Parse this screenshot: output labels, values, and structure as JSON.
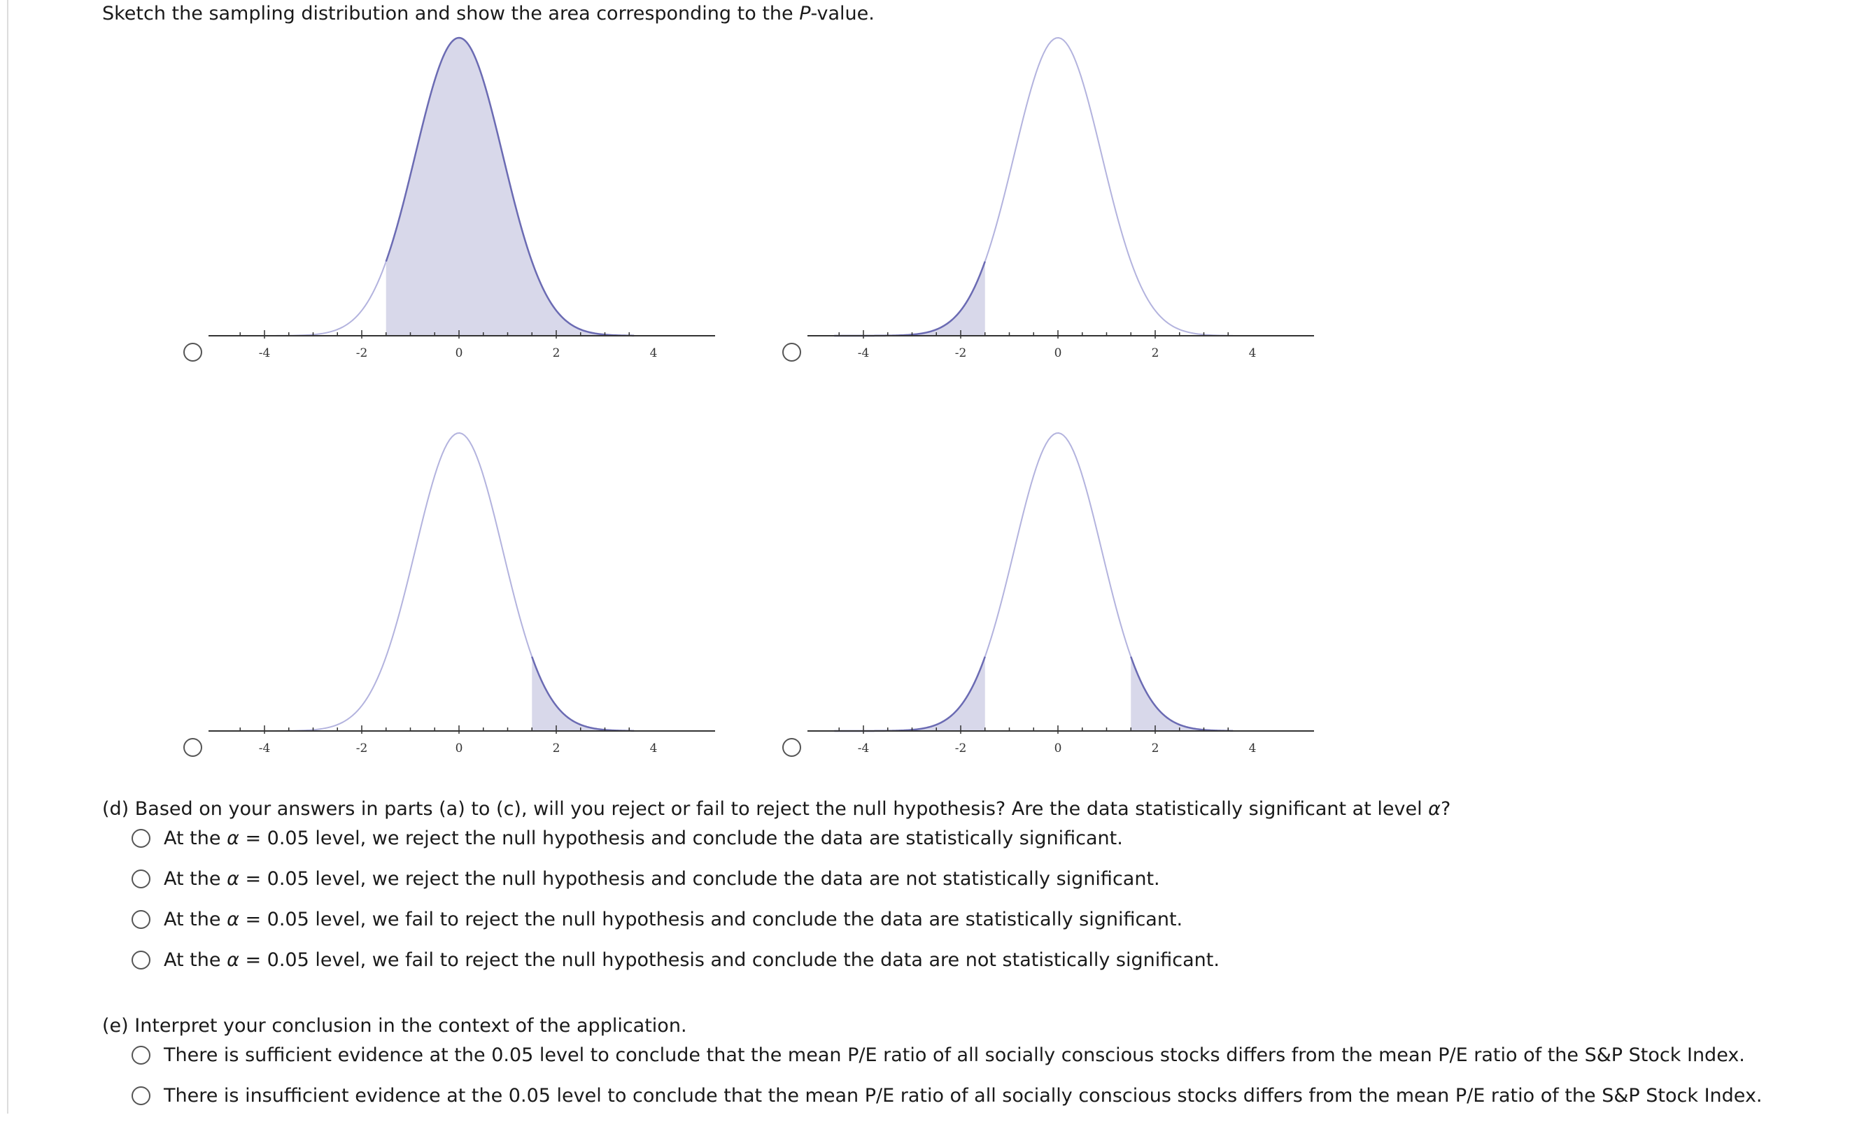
{
  "prompt": {
    "text_before": "Sketch the sampling distribution and show the area corresponding to the ",
    "text_italic": "P",
    "text_after": "-value."
  },
  "graph_options": [
    {
      "shade": "middle",
      "from": -1.5,
      "to": 10
    },
    {
      "shade": "left-tail",
      "from": -10,
      "to": -1.5
    },
    {
      "shade": "right-tail",
      "from": 1.5,
      "to": 10
    },
    {
      "shade": "two-tail",
      "left_to": -1.5,
      "right_from": 1.5
    }
  ],
  "axis": {
    "tick_labels": [
      "-4",
      "-2",
      "0",
      "2",
      "4"
    ],
    "tick_values": [
      -4,
      -2,
      0,
      2,
      4
    ]
  },
  "colors": {
    "curve": "#6b6bb3",
    "curve_light": "#b3b3de",
    "shade_fill": "#d8d8ea",
    "axis": "#333333"
  },
  "part_d": {
    "question_start": "(d) Based on your answers in parts (a) to (c), will you reject or fail to reject the null hypothesis? Are the data statistically significant at level ",
    "question_symbol": "α",
    "question_end": "?",
    "options": [
      {
        "prefix": "At the ",
        "symbol": "α",
        "suffix": " = 0.05 level, we reject the null hypothesis and conclude the data are statistically significant."
      },
      {
        "prefix": "At the ",
        "symbol": "α",
        "suffix": " = 0.05 level, we reject the null hypothesis and conclude the data are not statistically significant."
      },
      {
        "prefix": "At the ",
        "symbol": "α",
        "suffix": " = 0.05 level, we fail to reject the null hypothesis and conclude the data are statistically significant."
      },
      {
        "prefix": "At the ",
        "symbol": "α",
        "suffix": " = 0.05 level, we fail to reject the null hypothesis and conclude the data are not statistically significant."
      }
    ]
  },
  "part_e": {
    "question": "(e) Interpret your conclusion in the context of the application.",
    "options": [
      "There is sufficient evidence at the 0.05 level to conclude that the mean P/E ratio of all socially conscious stocks differs from the mean P/E ratio of the S&P Stock Index.",
      "There is insufficient evidence at the 0.05 level to conclude that the mean P/E ratio of all socially conscious stocks differs from the mean P/E ratio of the S&P Stock Index."
    ]
  }
}
